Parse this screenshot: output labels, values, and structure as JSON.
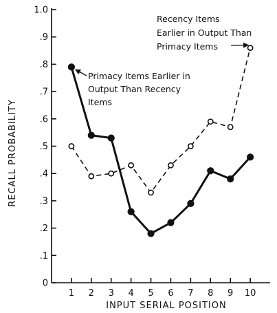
{
  "chart_data": {
    "type": "line",
    "title": "",
    "xlabel": "INPUT SERIAL POSITION",
    "ylabel": "RECALL PROBABILITY",
    "x": [
      1,
      2,
      3,
      4,
      5,
      6,
      7,
      8,
      9,
      10
    ],
    "xlim": [
      0,
      11
    ],
    "ylim": [
      0,
      1.0
    ],
    "xticks": [
      1,
      2,
      3,
      4,
      5,
      6,
      7,
      8,
      9,
      10
    ],
    "xtick_labels": [
      "1",
      "2",
      "3",
      "4",
      "5",
      "6",
      "7",
      "8",
      "9",
      "10"
    ],
    "yticks": [
      0,
      0.1,
      0.2,
      0.3,
      0.4,
      0.5,
      0.6,
      0.7,
      0.8,
      0.9,
      1.0
    ],
    "ytick_labels": [
      "0",
      ".1",
      ".2",
      ".3",
      ".4",
      ".5",
      ".6",
      ".7",
      ".8",
      ".9",
      "1.0"
    ],
    "grid": false,
    "series": [
      {
        "name": "Primacy Items Earlier in Output Than Recency Items",
        "values": [
          0.79,
          0.54,
          0.53,
          0.26,
          0.18,
          0.22,
          0.29,
          0.41,
          0.38,
          0.46
        ],
        "line_style": "solid",
        "marker": "filled-circle",
        "annotation_lines": [
          "Primacy Items Earlier in",
          "Output Than Recency",
          "Items"
        ]
      },
      {
        "name": "Recency Items Earlier in Output Than Primacy Items",
        "values": [
          0.5,
          0.39,
          0.4,
          0.43,
          0.33,
          0.43,
          0.5,
          0.59,
          0.57,
          0.86
        ],
        "line_style": "dashed",
        "marker": "open-circle",
        "annotation_lines": [
          "Recency Items",
          "Earlier in Output Than",
          "Primacy Items"
        ]
      }
    ],
    "colors": {
      "ink": "#111111",
      "background": "#ffffff"
    }
  }
}
